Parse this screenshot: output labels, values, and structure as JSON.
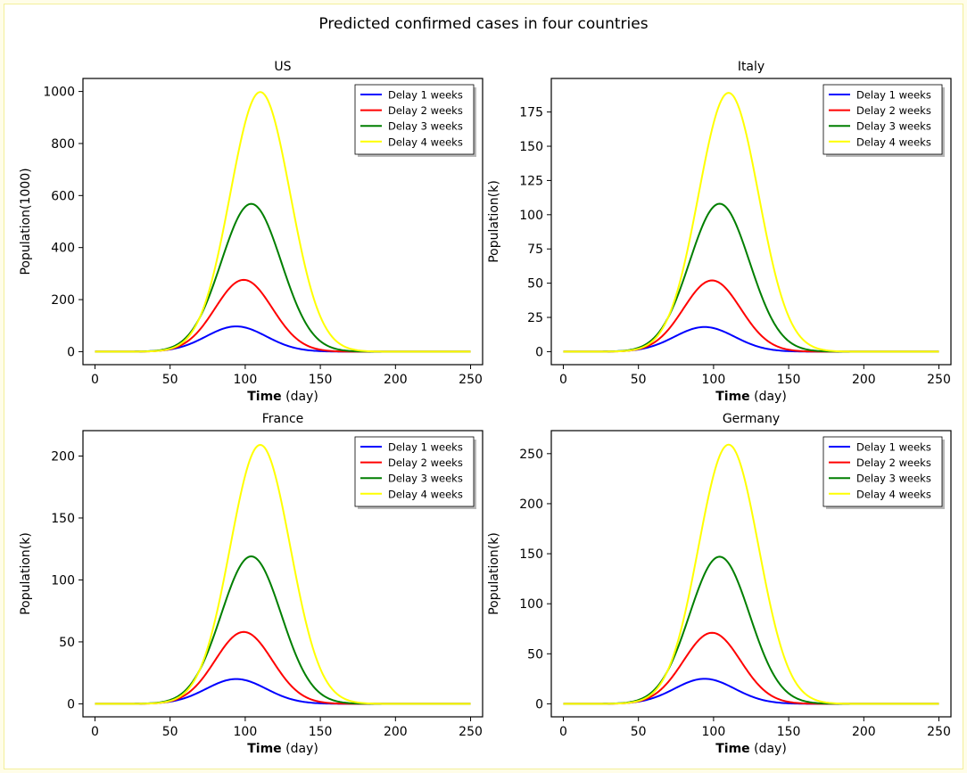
{
  "figure": {
    "title": "Predicted confirmed cases in four countries",
    "background": "#ffffff",
    "page_background": "#fffde8"
  },
  "series_colors": {
    "Delay 1 weeks": "#0000ff",
    "Delay 2 weeks": "#ff0000",
    "Delay 3 weeks": "#007f00",
    "Delay 4 weeks": "#ffff00"
  },
  "chart_data": [
    {
      "type": "line",
      "title": "US",
      "xlabel_bold": "Time",
      "xlabel_rest": " (day)",
      "ylabel": "Population(1000)",
      "xlim": [
        -8,
        258
      ],
      "ylim": [
        -50,
        1050
      ],
      "xticks": [
        0,
        50,
        100,
        150,
        200,
        250
      ],
      "yticks": [
        0,
        200,
        400,
        600,
        800,
        1000
      ],
      "legend_position": "top-right",
      "series": [
        {
          "name": "Delay 1 weeks",
          "peak_day": 94,
          "peak": 97,
          "width": 20
        },
        {
          "name": "Delay 2 weeks",
          "peak_day": 99,
          "peak": 276,
          "width": 19
        },
        {
          "name": "Delay 3 weeks",
          "peak_day": 104,
          "peak": 568,
          "width": 20
        },
        {
          "name": "Delay 4 weeks",
          "peak_day": 110,
          "peak": 998,
          "width": 20
        }
      ]
    },
    {
      "type": "line",
      "title": "Italy",
      "xlabel_bold": "Time",
      "xlabel_rest": " (day)",
      "ylabel": "Population(k)",
      "xlim": [
        -8,
        258
      ],
      "ylim": [
        -9.5,
        199.5
      ],
      "xticks": [
        0,
        50,
        100,
        150,
        200,
        250
      ],
      "yticks": [
        0,
        25,
        50,
        75,
        100,
        125,
        150,
        175
      ],
      "legend_position": "top-right",
      "series": [
        {
          "name": "Delay 1 weeks",
          "peak_day": 94,
          "peak": 18,
          "width": 20
        },
        {
          "name": "Delay 2 weeks",
          "peak_day": 99,
          "peak": 52,
          "width": 19
        },
        {
          "name": "Delay 3 weeks",
          "peak_day": 104,
          "peak": 108,
          "width": 20
        },
        {
          "name": "Delay 4 weeks",
          "peak_day": 110,
          "peak": 189,
          "width": 20
        }
      ]
    },
    {
      "type": "line",
      "title": "France",
      "xlabel_bold": "Time",
      "xlabel_rest": " (day)",
      "ylabel": "Population(k)",
      "xlim": [
        -8,
        258
      ],
      "ylim": [
        -10.5,
        220.5
      ],
      "xticks": [
        0,
        50,
        100,
        150,
        200,
        250
      ],
      "yticks": [
        0,
        50,
        100,
        150,
        200
      ],
      "legend_position": "top-right",
      "series": [
        {
          "name": "Delay 1 weeks",
          "peak_day": 94,
          "peak": 20,
          "width": 20
        },
        {
          "name": "Delay 2 weeks",
          "peak_day": 99,
          "peak": 58,
          "width": 19
        },
        {
          "name": "Delay 3 weeks",
          "peak_day": 104,
          "peak": 119,
          "width": 20
        },
        {
          "name": "Delay 4 weeks",
          "peak_day": 110,
          "peak": 209,
          "width": 20
        }
      ]
    },
    {
      "type": "line",
      "title": "Germany",
      "xlabel_bold": "Time",
      "xlabel_rest": " (day)",
      "ylabel": "Population(k)",
      "xlim": [
        -8,
        258
      ],
      "ylim": [
        -13,
        273
      ],
      "xticks": [
        0,
        50,
        100,
        150,
        200,
        250
      ],
      "yticks": [
        0,
        50,
        100,
        150,
        200,
        250
      ],
      "legend_position": "top-right",
      "series": [
        {
          "name": "Delay 1 weeks",
          "peak_day": 94,
          "peak": 25,
          "width": 20
        },
        {
          "name": "Delay 2 weeks",
          "peak_day": 99,
          "peak": 71,
          "width": 19
        },
        {
          "name": "Delay 3 weeks",
          "peak_day": 104,
          "peak": 147,
          "width": 20
        },
        {
          "name": "Delay 4 weeks",
          "peak_day": 110,
          "peak": 259,
          "width": 20
        }
      ]
    }
  ]
}
